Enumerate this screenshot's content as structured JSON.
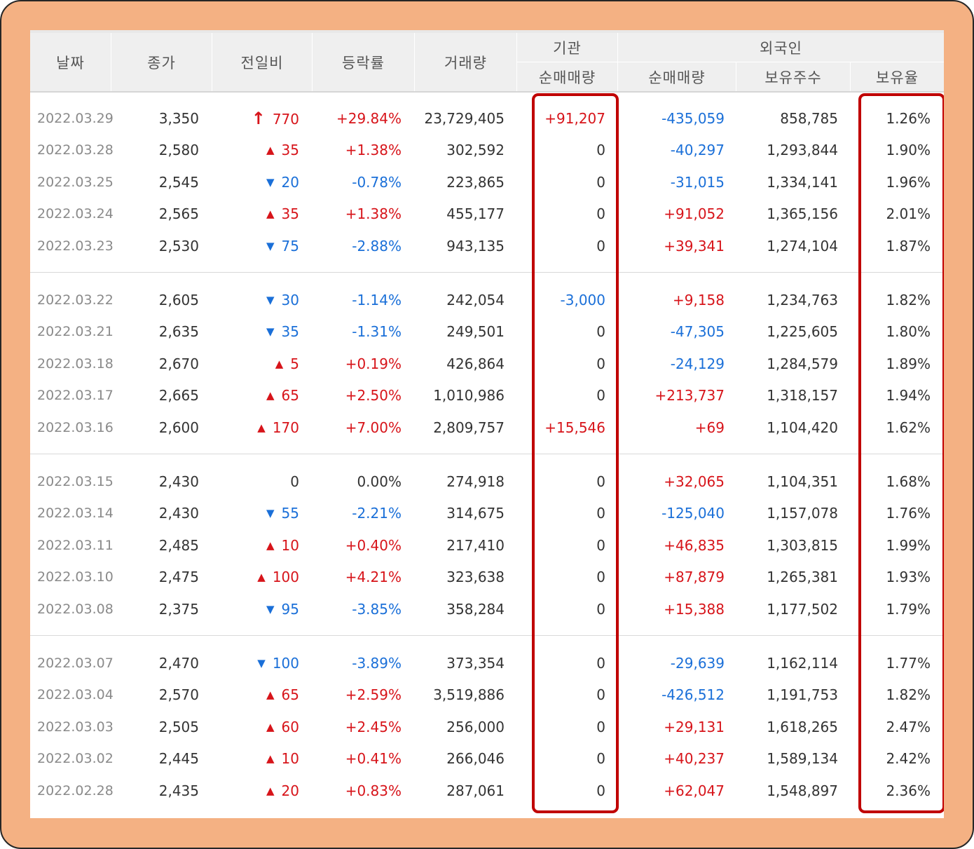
{
  "table": {
    "headers": {
      "date": "날짜",
      "close": "종가",
      "change": "전일비",
      "rate": "등락률",
      "volume": "거래량",
      "institution": "기관",
      "institution_net": "순매매량",
      "foreign": "외국인",
      "foreign_net": "순매매량",
      "foreign_shares": "보유주수",
      "foreign_ratio": "보유율"
    },
    "colors": {
      "up": "#d7141a",
      "down": "#1a6fd8",
      "highlight": "#c00000"
    },
    "rows": [
      {
        "date": "2022.03.29",
        "close": "3,350",
        "dir": "limit-up",
        "change": "770",
        "rate": "+29.84%",
        "volume": "23,729,405",
        "inst": "+91,207",
        "foreign": "-435,059",
        "shares": "858,785",
        "ratio": "1.26%"
      },
      {
        "date": "2022.03.28",
        "close": "2,580",
        "dir": "up",
        "change": "35",
        "rate": "+1.38%",
        "volume": "302,592",
        "inst": "0",
        "foreign": "-40,297",
        "shares": "1,293,844",
        "ratio": "1.90%"
      },
      {
        "date": "2022.03.25",
        "close": "2,545",
        "dir": "down",
        "change": "20",
        "rate": "-0.78%",
        "volume": "223,865",
        "inst": "0",
        "foreign": "-31,015",
        "shares": "1,334,141",
        "ratio": "1.96%"
      },
      {
        "date": "2022.03.24",
        "close": "2,565",
        "dir": "up",
        "change": "35",
        "rate": "+1.38%",
        "volume": "455,177",
        "inst": "0",
        "foreign": "+91,052",
        "shares": "1,365,156",
        "ratio": "2.01%"
      },
      {
        "date": "2022.03.23",
        "close": "2,530",
        "dir": "down",
        "change": "75",
        "rate": "-2.88%",
        "volume": "943,135",
        "inst": "0",
        "foreign": "+39,341",
        "shares": "1,274,104",
        "ratio": "1.87%"
      },
      {
        "date": "2022.03.22",
        "close": "2,605",
        "dir": "down",
        "change": "30",
        "rate": "-1.14%",
        "volume": "242,054",
        "inst": "-3,000",
        "foreign": "+9,158",
        "shares": "1,234,763",
        "ratio": "1.82%"
      },
      {
        "date": "2022.03.21",
        "close": "2,635",
        "dir": "down",
        "change": "35",
        "rate": "-1.31%",
        "volume": "249,501",
        "inst": "0",
        "foreign": "-47,305",
        "shares": "1,225,605",
        "ratio": "1.80%"
      },
      {
        "date": "2022.03.18",
        "close": "2,670",
        "dir": "up",
        "change": "5",
        "rate": "+0.19%",
        "volume": "426,864",
        "inst": "0",
        "foreign": "-24,129",
        "shares": "1,284,579",
        "ratio": "1.89%"
      },
      {
        "date": "2022.03.17",
        "close": "2,665",
        "dir": "up",
        "change": "65",
        "rate": "+2.50%",
        "volume": "1,010,986",
        "inst": "0",
        "foreign": "+213,737",
        "shares": "1,318,157",
        "ratio": "1.94%"
      },
      {
        "date": "2022.03.16",
        "close": "2,600",
        "dir": "up",
        "change": "170",
        "rate": "+7.00%",
        "volume": "2,809,757",
        "inst": "+15,546",
        "foreign": "+69",
        "shares": "1,104,420",
        "ratio": "1.62%"
      },
      {
        "date": "2022.03.15",
        "close": "2,430",
        "dir": "flat",
        "change": "0",
        "rate": "0.00%",
        "volume": "274,918",
        "inst": "0",
        "foreign": "+32,065",
        "shares": "1,104,351",
        "ratio": "1.68%"
      },
      {
        "date": "2022.03.14",
        "close": "2,430",
        "dir": "down",
        "change": "55",
        "rate": "-2.21%",
        "volume": "314,675",
        "inst": "0",
        "foreign": "-125,040",
        "shares": "1,157,078",
        "ratio": "1.76%"
      },
      {
        "date": "2022.03.11",
        "close": "2,485",
        "dir": "up",
        "change": "10",
        "rate": "+0.40%",
        "volume": "217,410",
        "inst": "0",
        "foreign": "+46,835",
        "shares": "1,303,815",
        "ratio": "1.99%"
      },
      {
        "date": "2022.03.10",
        "close": "2,475",
        "dir": "up",
        "change": "100",
        "rate": "+4.21%",
        "volume": "323,638",
        "inst": "0",
        "foreign": "+87,879",
        "shares": "1,265,381",
        "ratio": "1.93%"
      },
      {
        "date": "2022.03.08",
        "close": "2,375",
        "dir": "down",
        "change": "95",
        "rate": "-3.85%",
        "volume": "358,284",
        "inst": "0",
        "foreign": "+15,388",
        "shares": "1,177,502",
        "ratio": "1.79%"
      },
      {
        "date": "2022.03.07",
        "close": "2,470",
        "dir": "down",
        "change": "100",
        "rate": "-3.89%",
        "volume": "373,354",
        "inst": "0",
        "foreign": "-29,639",
        "shares": "1,162,114",
        "ratio": "1.77%"
      },
      {
        "date": "2022.03.04",
        "close": "2,570",
        "dir": "up",
        "change": "65",
        "rate": "+2.59%",
        "volume": "3,519,886",
        "inst": "0",
        "foreign": "-426,512",
        "shares": "1,191,753",
        "ratio": "1.82%"
      },
      {
        "date": "2022.03.03",
        "close": "2,505",
        "dir": "up",
        "change": "60",
        "rate": "+2.45%",
        "volume": "256,000",
        "inst": "0",
        "foreign": "+29,131",
        "shares": "1,618,265",
        "ratio": "2.47%"
      },
      {
        "date": "2022.03.02",
        "close": "2,445",
        "dir": "up",
        "change": "10",
        "rate": "+0.41%",
        "volume": "266,046",
        "inst": "0",
        "foreign": "+40,237",
        "shares": "1,589,134",
        "ratio": "2.42%"
      },
      {
        "date": "2022.02.28",
        "close": "2,435",
        "dir": "up",
        "change": "20",
        "rate": "+0.83%",
        "volume": "287,061",
        "inst": "0",
        "foreign": "+62,047",
        "shares": "1,548,897",
        "ratio": "2.36%"
      }
    ]
  }
}
